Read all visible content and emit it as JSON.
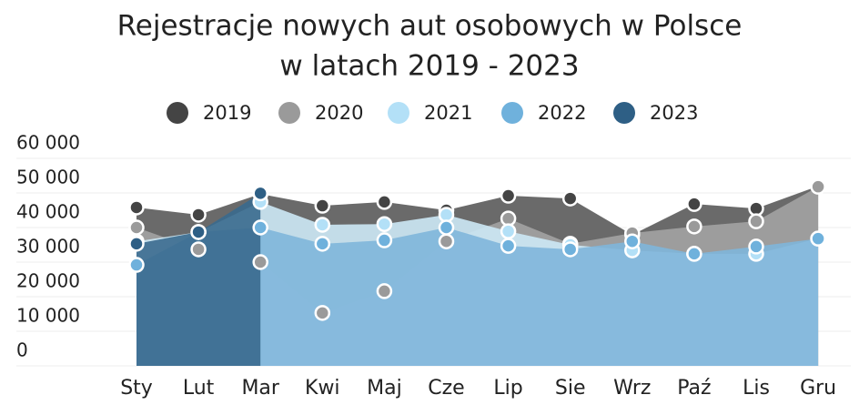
{
  "chart_data": {
    "type": "area",
    "title": [
      "Rejestracje nowych aut osobowych w Polsce",
      "w latach 2019 - 2023"
    ],
    "categories": [
      "Sty",
      "Lut",
      "Mar",
      "Kwi",
      "Maj",
      "Cze",
      "Lip",
      "Sie",
      "Wrz",
      "Paź",
      "Lis",
      "Gru"
    ],
    "series": [
      {
        "name": "2019",
        "color": "#444444",
        "values": [
          45800,
          43700,
          49700,
          46300,
          47400,
          45000,
          49200,
          48400,
          37900,
          46800,
          45500,
          52000
        ]
      },
      {
        "name": "2020",
        "color": "#9a9a9a",
        "values": [
          40000,
          33700,
          30000,
          15300,
          21600,
          36000,
          42600,
          35300,
          38400,
          40300,
          41800,
          51800
        ]
      },
      {
        "name": "2021",
        "color": "#b3e0f7",
        "values": [
          36000,
          38700,
          47400,
          40800,
          41000,
          43700,
          38900,
          35000,
          33400,
          32400,
          32400,
          36800
        ]
      },
      {
        "name": "2022",
        "color": "#6fb1dc",
        "values": [
          29200,
          38700,
          40000,
          35300,
          36300,
          40000,
          34700,
          33700,
          36000,
          32400,
          34500,
          36800
        ]
      },
      {
        "name": "2023",
        "color": "#2e5f85",
        "values": [
          35300,
          38700,
          49900,
          null,
          null,
          null,
          null,
          null,
          null,
          null,
          null,
          null
        ]
      }
    ],
    "ylim": [
      0,
      60000
    ],
    "yticks": [
      0,
      {
        "value": 10000,
        "label": "10 000"
      },
      {
        "value": 20000,
        "label": "20 000"
      },
      {
        "value": 30000,
        "label": "30 000"
      },
      {
        "value": 40000,
        "label": "40 000"
      },
      {
        "value": 50000,
        "label": "50 000"
      },
      {
        "value": 60000,
        "label": "60 000"
      }
    ],
    "grid": true,
    "legend": "top"
  }
}
